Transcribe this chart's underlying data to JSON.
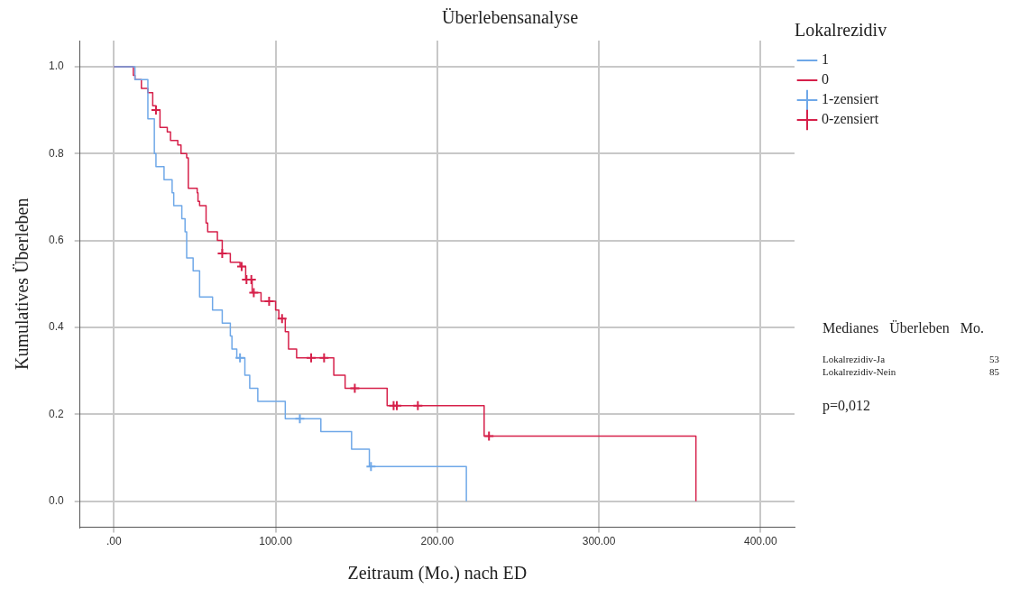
{
  "chart_data": {
    "type": "step",
    "title": "Überlebensanalyse",
    "xlabel": "Zeitraum (Mo.) nach ED",
    "ylabel": "Kumulatives Überleben",
    "legend_title": "Lokalrezidiv",
    "legend": "top right",
    "grid": true,
    "xlim": [
      -21,
      421
    ],
    "ylim": [
      -0.06,
      1.06
    ],
    "xticks": [
      {
        "value": 0,
        "label": ".00"
      },
      {
        "value": 100,
        "label": "100.00"
      },
      {
        "value": 200,
        "label": "200.00"
      },
      {
        "value": 300,
        "label": "300.00"
      },
      {
        "value": 400,
        "label": "400.00"
      }
    ],
    "yticks": [
      {
        "value": 0,
        "label": "0.0"
      },
      {
        "value": 0.2,
        "label": "0.2"
      },
      {
        "value": 0.4,
        "label": "0.4"
      },
      {
        "value": 0.6,
        "label": "0.6"
      },
      {
        "value": 0.8,
        "label": "0.8"
      },
      {
        "value": 1,
        "label": "1.0"
      }
    ],
    "series": [
      {
        "name": "1",
        "color": "#6fa8e8",
        "marker": "none",
        "x": [
          0,
          13,
          21,
          25,
          26,
          31,
          36,
          37,
          42,
          44,
          45,
          49,
          53,
          61,
          67,
          72,
          73,
          76,
          81,
          84,
          89,
          106,
          128,
          147,
          158,
          218
        ],
        "values": [
          1,
          0.97,
          0.88,
          0.8,
          0.77,
          0.74,
          0.71,
          0.68,
          0.65,
          0.62,
          0.56,
          0.53,
          0.47,
          0.44,
          0.41,
          0.38,
          0.35,
          0.33,
          0.29,
          0.26,
          0.23,
          0.19,
          0.16,
          0.12,
          0.08,
          0
        ]
      },
      {
        "name": "0",
        "color": "#d6204a",
        "marker": "none",
        "x": [
          0,
          12,
          13,
          17,
          21,
          24,
          26,
          28.5,
          33,
          35,
          39.5,
          41.5,
          45,
          46,
          51.5,
          52,
          53,
          57,
          58,
          64,
          67,
          72,
          78,
          81.5,
          85.5,
          91,
          100,
          102,
          106,
          108,
          113,
          136,
          143,
          169,
          229,
          360
        ],
        "values": [
          1,
          0.98,
          0.97,
          0.95,
          0.94,
          0.91,
          0.9,
          0.86,
          0.85,
          0.83,
          0.82,
          0.8,
          0.79,
          0.72,
          0.71,
          0.69,
          0.68,
          0.64,
          0.62,
          0.6,
          0.57,
          0.55,
          0.54,
          0.51,
          0.48,
          0.46,
          0.44,
          0.42,
          0.39,
          0.35,
          0.33,
          0.29,
          0.26,
          0.22,
          0.15,
          0
        ]
      },
      {
        "name": "1-zensiert",
        "type": "scatter",
        "color": "#6fa8e8",
        "marker": "cross",
        "x": [
          78,
          115,
          159
        ],
        "values": [
          0.33,
          0.19,
          0.08
        ]
      },
      {
        "name": "0-zensiert",
        "type": "scatter",
        "color": "#d6204a",
        "marker": "cross",
        "x": [
          26,
          67,
          79,
          82,
          85,
          86.5,
          96,
          104,
          122,
          130,
          149,
          173,
          175,
          188,
          232
        ],
        "values": [
          0.9,
          0.57,
          0.54,
          0.51,
          0.51,
          0.48,
          0.46,
          0.42,
          0.33,
          0.33,
          0.26,
          0.22,
          0.22,
          0.22,
          0.15
        ]
      }
    ],
    "annotations": [
      "Medianes   Überleben   Mo.",
      "Lokalrezidiv-Ja",
      "53",
      "Lokalrezidiv-Nein",
      "85",
      "p=0,012"
    ]
  }
}
